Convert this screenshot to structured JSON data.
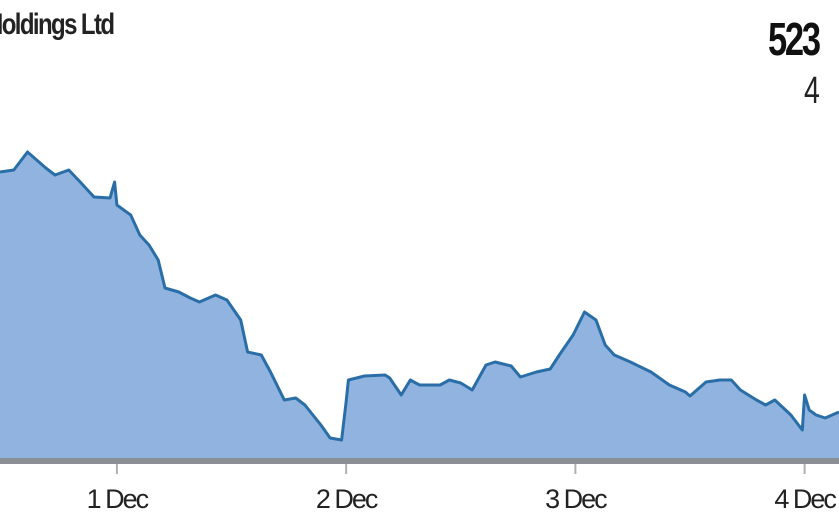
{
  "chart_data": {
    "type": "area",
    "title": "Holdings Ltd",
    "price_label": "523",
    "sub_label": "4",
    "xlabel": "",
    "ylabel": "",
    "x_ticks": [
      {
        "value": 1,
        "label": "1 Dec"
      },
      {
        "value": 2,
        "label": "2 Dec"
      },
      {
        "value": 3,
        "label": "3 Dec"
      },
      {
        "value": 4,
        "label": "4 Dec"
      }
    ],
    "xlim": [
      0.49,
      4.15
    ],
    "ylim": [
      0,
      460
    ],
    "grid": false,
    "colors": {
      "line": "#2a6ea8",
      "fill": "#90b4df",
      "axis": "#8a8f96",
      "tick": "#b0b0b0"
    },
    "series": [
      {
        "x": [
          0.49,
          0.55,
          0.61,
          0.69,
          0.73,
          0.79,
          0.84,
          0.9,
          0.97,
          0.99,
          1.0,
          1.06,
          1.1,
          1.14,
          1.18,
          1.21,
          1.27,
          1.32,
          1.36,
          1.43,
          1.48,
          1.54,
          1.57,
          1.63,
          1.67,
          1.73,
          1.78,
          1.82,
          1.89,
          1.93,
          1.98,
          2.0,
          2.01,
          2.08,
          2.17,
          2.19,
          2.24,
          2.28,
          2.32,
          2.41,
          2.45,
          2.5,
          2.55,
          2.61,
          2.65,
          2.72,
          2.76,
          2.83,
          2.89,
          2.93,
          2.99,
          3.04,
          3.09,
          3.13,
          3.17,
          3.24,
          3.33,
          3.41,
          3.48,
          3.5,
          3.57,
          3.63,
          3.68,
          3.72,
          3.79,
          3.83,
          3.87,
          3.94,
          3.99,
          4.0,
          4.02,
          4.05,
          4.09,
          4.15
        ],
        "y": [
          288,
          290,
          308,
          292,
          285,
          290,
          278,
          263,
          262,
          278,
          255,
          245,
          225,
          215,
          200,
          172,
          168,
          162,
          158,
          165,
          160,
          140,
          108,
          105,
          88,
          60,
          62,
          55,
          35,
          22,
          20,
          58,
          80,
          84,
          85,
          82,
          65,
          80,
          75,
          75,
          80,
          77,
          70,
          95,
          98,
          94,
          83,
          88,
          91,
          105,
          125,
          148,
          140,
          115,
          105,
          98,
          88,
          75,
          68,
          64,
          78,
          80,
          80,
          70,
          60,
          55,
          60,
          45,
          30,
          65,
          50,
          45,
          42,
          48
        ]
      }
    ]
  }
}
